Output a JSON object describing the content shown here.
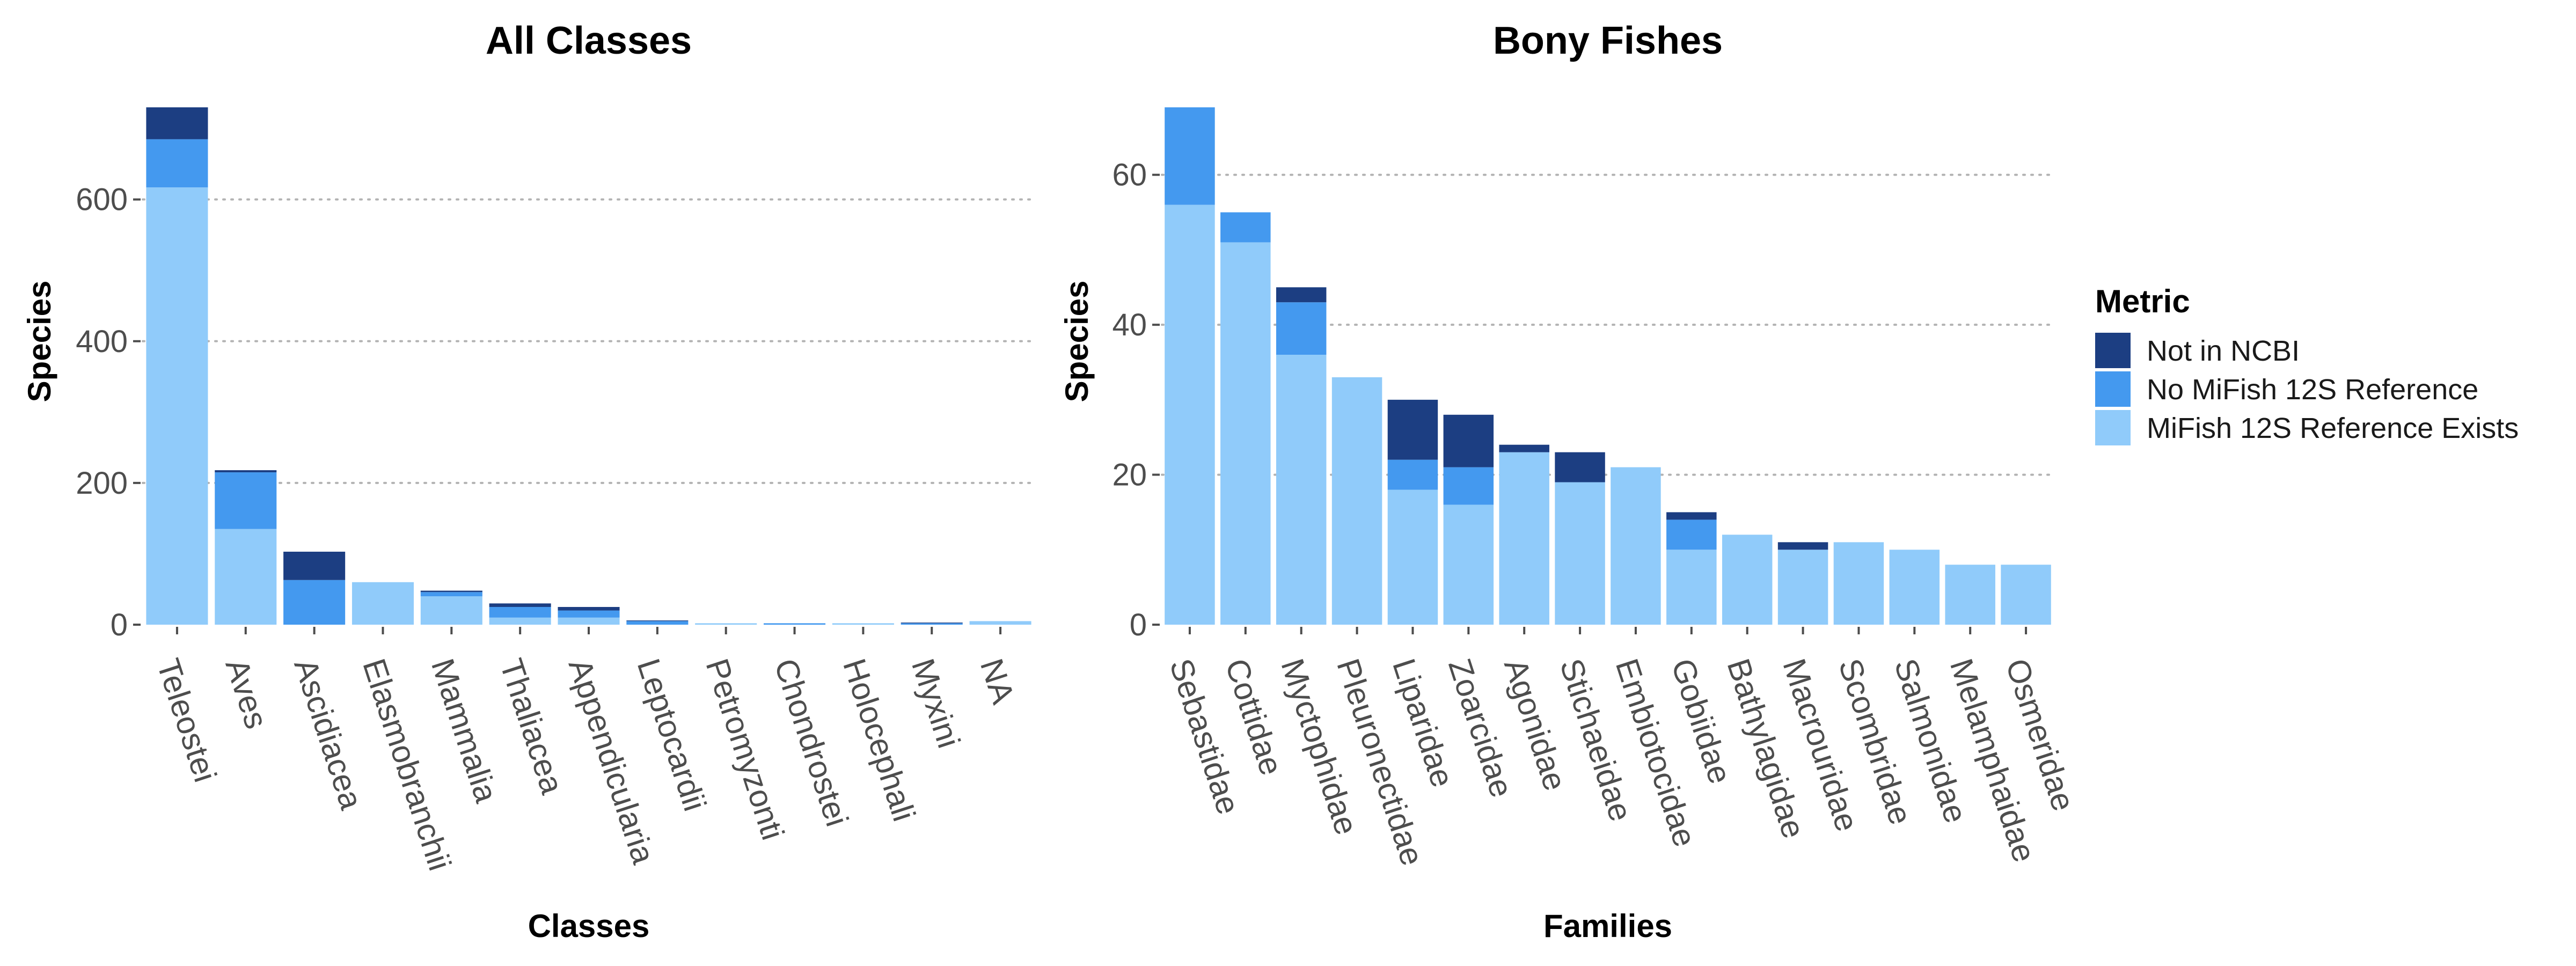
{
  "legend": {
    "title": "Metric",
    "items": [
      {
        "label": "Not in NCBI",
        "color": "#1c3e82"
      },
      {
        "label": "No MiFish 12S Reference",
        "color": "#4499ef"
      },
      {
        "label": "MiFish 12S Reference Exists",
        "color": "#90cbfa"
      }
    ]
  },
  "chart_data": [
    {
      "type": "bar",
      "stacked": true,
      "title": "All Classes",
      "xlabel": "Classes",
      "ylabel": "Species",
      "ylim": [
        0,
        730
      ],
      "yticks": [
        0,
        200,
        400,
        600
      ],
      "grid": "horizontal dotted",
      "categories": [
        "Teleostei",
        "Aves",
        "Ascidiacea",
        "Elasmobranchii",
        "Mammalia",
        "Thaliacea",
        "Appendicularia",
        "Leptocardii",
        "Petromyzonti",
        "Chondrostei",
        "Holocephali",
        "Myxini",
        "NA"
      ],
      "series": [
        {
          "name": "MiFish 12S Reference Exists",
          "values": [
            617,
            135,
            0,
            60,
            40,
            10,
            10,
            0,
            2,
            0,
            2,
            0,
            5
          ]
        },
        {
          "name": "No MiFish 12S Reference",
          "values": [
            68,
            80,
            63,
            0,
            6,
            15,
            10,
            5,
            0,
            2,
            0,
            2,
            0
          ]
        },
        {
          "name": "Not in NCBI",
          "values": [
            45,
            3,
            40,
            0,
            2,
            5,
            5,
            1,
            0,
            0,
            0,
            1,
            0
          ]
        }
      ]
    },
    {
      "type": "bar",
      "stacked": true,
      "title": "Bony Fishes",
      "xlabel": "Families",
      "ylabel": "Species",
      "ylim": [
        0,
        69
      ],
      "yticks": [
        0,
        20,
        40,
        60
      ],
      "grid": "horizontal dotted",
      "categories": [
        "Sebastidae",
        "Cottidae",
        "Myctophidae",
        "Pleuronectidae",
        "Liparidae",
        "Zoarcidae",
        "Agonidae",
        "Stichaeidae",
        "Embiotocidae",
        "Gobiidae",
        "Bathylagidae",
        "Macrouridae",
        "Scombridae",
        "Salmonidae",
        "Melamphaidae",
        "Osmeridae"
      ],
      "series": [
        {
          "name": "MiFish 12S Reference Exists",
          "values": [
            56,
            51,
            36,
            33,
            18,
            16,
            23,
            19,
            21,
            10,
            12,
            10,
            11,
            10,
            8,
            8
          ]
        },
        {
          "name": "No MiFish 12S Reference",
          "values": [
            13,
            4,
            7,
            0,
            4,
            5,
            0,
            0,
            0,
            4,
            0,
            0,
            0,
            0,
            0,
            0
          ]
        },
        {
          "name": "Not in NCBI",
          "values": [
            0,
            0,
            2,
            0,
            8,
            7,
            1,
            4,
            0,
            1,
            0,
            1,
            0,
            0,
            0,
            0
          ]
        }
      ]
    }
  ]
}
